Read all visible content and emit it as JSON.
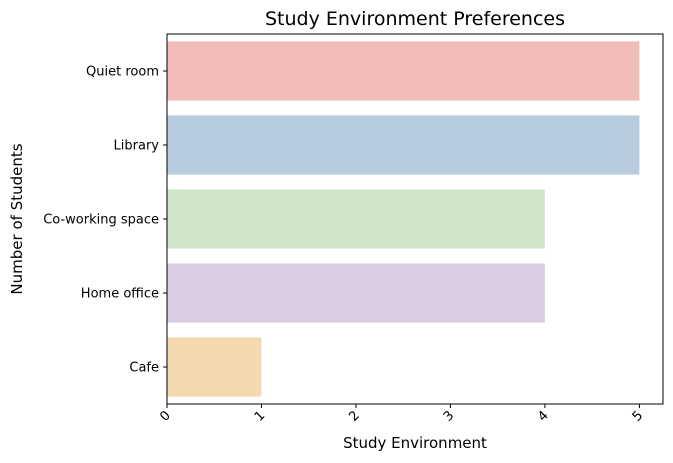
{
  "chart_data": {
    "type": "bar",
    "orientation": "horizontal",
    "title": "Study Environment Preferences",
    "xlabel": "Study Environment",
    "ylabel": "Number of Students",
    "categories": [
      "Quiet room",
      "Library",
      "Co-working space",
      "Home office",
      "Cafe"
    ],
    "values": [
      5,
      5,
      4,
      4,
      1
    ],
    "colors": [
      "#f1bbba",
      "#b8ccdf",
      "#d0e6cb",
      "#dacde2",
      "#f3d8b0"
    ],
    "xlim": [
      0,
      5.25
    ],
    "xticks": [
      "0",
      "1",
      "2",
      "3",
      "4",
      "5"
    ],
    "grid": false,
    "legend": false
  }
}
